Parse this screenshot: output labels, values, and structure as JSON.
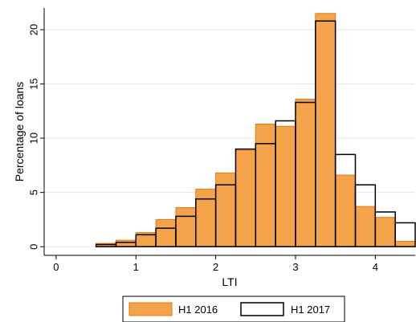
{
  "chart_data": {
    "type": "bar",
    "title": "",
    "xlabel": "LTI",
    "ylabel": "Percentage of loans",
    "xlim": [
      -0.15,
      4.5
    ],
    "ylim": [
      -0.8,
      22
    ],
    "x_ticks": [
      0,
      1,
      2,
      3,
      4
    ],
    "y_ticks": [
      0,
      5,
      10,
      15,
      20
    ],
    "grid": true,
    "legend_position": "bottom",
    "bin_width": 0.25,
    "bin_starts": [
      0.5,
      0.75,
      1.0,
      1.25,
      1.5,
      1.75,
      2.0,
      2.25,
      2.5,
      2.75,
      3.0,
      3.25,
      3.5,
      3.75,
      4.0,
      4.25
    ],
    "series": [
      {
        "name": "H1 2016",
        "style": "filled",
        "color": "#f5a34a",
        "edge_color": "#e07b10",
        "values": [
          0.3,
          0.6,
          1.3,
          2.5,
          3.6,
          5.3,
          6.8,
          8.9,
          11.3,
          11.1,
          13.6,
          21.5,
          6.6,
          3.7,
          2.7,
          0.5
        ]
      },
      {
        "name": "H1 2017",
        "style": "outline",
        "color": "#000000",
        "values": [
          0.2,
          0.4,
          1.1,
          1.7,
          2.8,
          4.4,
          5.7,
          9.0,
          9.5,
          11.6,
          13.3,
          20.8,
          8.5,
          5.7,
          3.2,
          2.2
        ]
      }
    ]
  }
}
